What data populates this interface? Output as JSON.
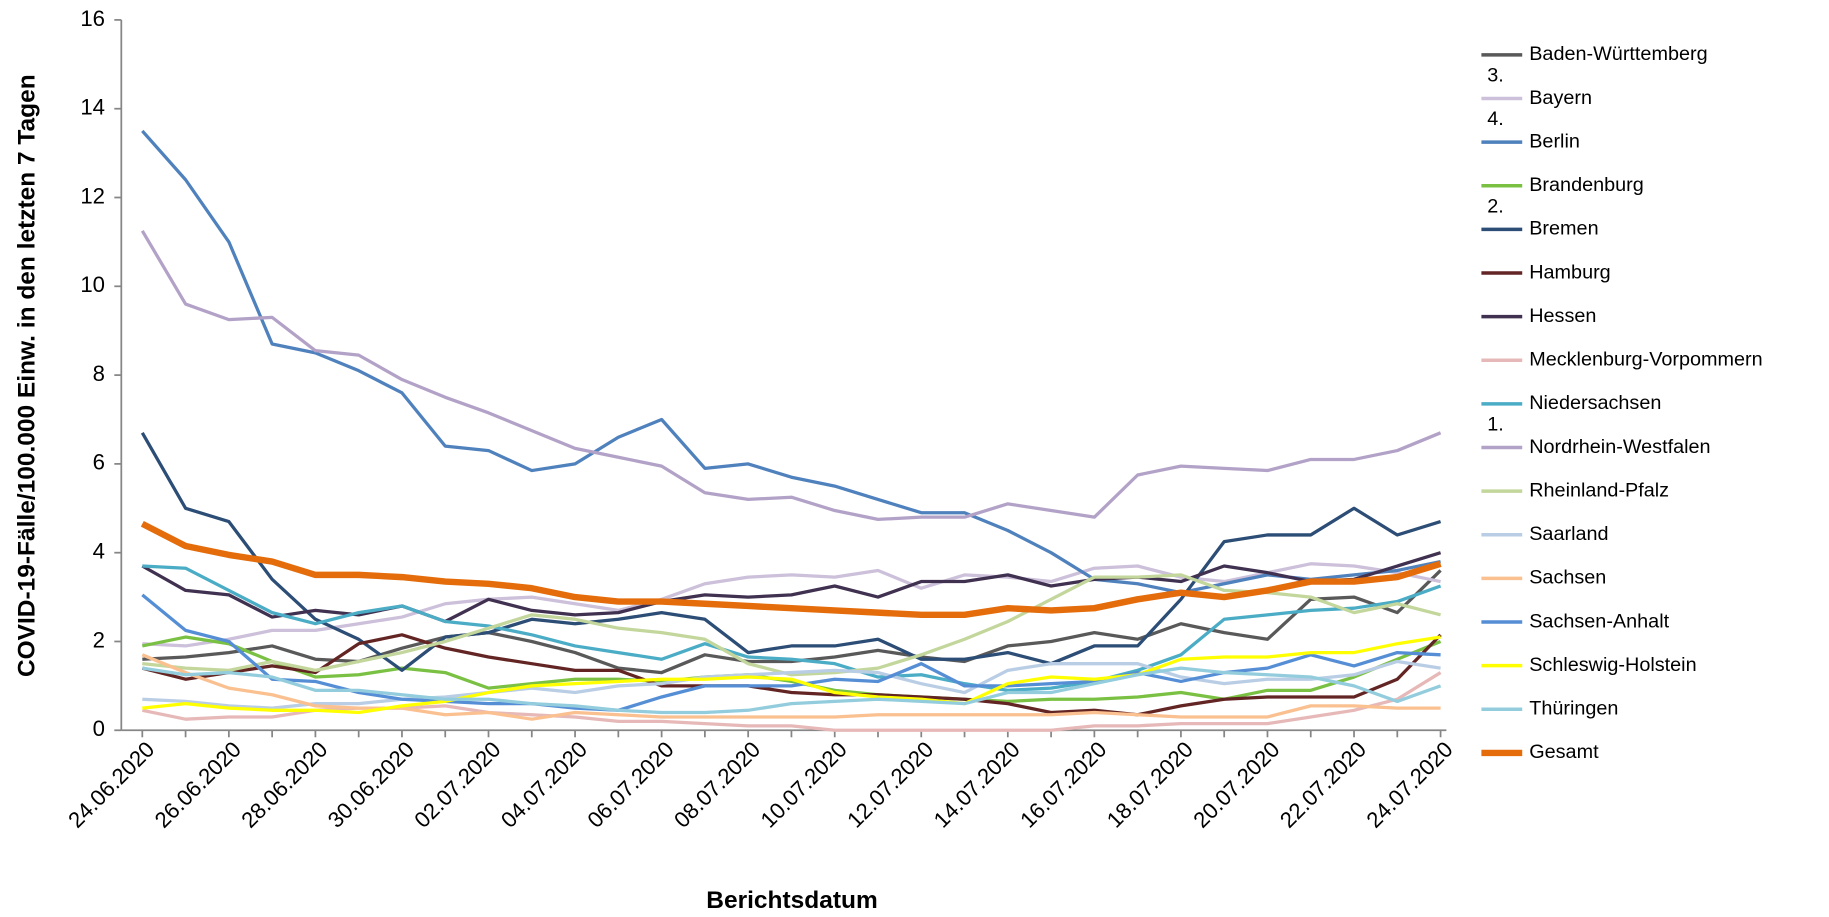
{
  "chart_data": {
    "type": "line",
    "y_label": "COVID-19-Fälle/100.000 Einw. in den letzten 7 Tagen",
    "x_label": "Berichtsdatum",
    "categories": [
      "24.06.2020",
      null,
      "26.06.2020",
      null,
      "28.06.2020",
      null,
      "30.06.2020",
      null,
      "02.07.2020",
      null,
      "04.07.2020",
      null,
      "06.07.2020",
      null,
      "08.07.2020",
      null,
      "10.07.2020",
      null,
      "12.07.2020",
      null,
      "14.07.2020",
      null,
      "16.07.2020",
      null,
      "18.07.2020",
      null,
      "20.07.2020",
      null,
      "22.07.2020",
      null,
      "24.07.2020"
    ],
    "ylim": [
      0,
      16
    ],
    "yticks": [
      0,
      2,
      4,
      6,
      8,
      10,
      12,
      14,
      16
    ],
    "grid": false,
    "legend": "right",
    "series": [
      {
        "name": "Baden-Württemberg",
        "color": "#595959",
        "values": [
          1.6,
          1.65,
          1.75,
          1.9,
          1.6,
          1.55,
          1.85,
          2.1,
          2.2,
          2.0,
          1.75,
          1.4,
          1.3,
          1.7,
          1.55,
          1.55,
          1.65,
          1.8,
          1.65,
          1.55,
          1.9,
          2.0,
          2.2,
          2.05,
          2.4,
          2.2,
          2.05,
          2.95,
          3.0,
          2.65,
          3.6
        ]
      },
      {
        "name": "Bayern",
        "annotation": "3.",
        "color": "#ccc0da",
        "values": [
          1.95,
          1.9,
          2.05,
          2.25,
          2.25,
          2.4,
          2.55,
          2.85,
          2.95,
          3.0,
          2.85,
          2.7,
          2.95,
          3.3,
          3.45,
          3.5,
          3.45,
          3.6,
          3.2,
          3.5,
          3.45,
          3.35,
          3.65,
          3.7,
          3.45,
          3.35,
          3.55,
          3.75,
          3.7,
          3.55,
          3.35
        ]
      },
      {
        "name": "Berlin",
        "annotation": "4.",
        "color": "#4f81bd",
        "values": [
          13.5,
          12.4,
          11.0,
          8.7,
          8.5,
          8.1,
          7.6,
          6.4,
          6.3,
          5.85,
          6.0,
          6.6,
          7.0,
          5.9,
          6.0,
          5.7,
          5.5,
          5.2,
          4.9,
          4.9,
          4.5,
          4.0,
          3.4,
          3.3,
          3.1,
          3.3,
          3.5,
          3.4,
          3.5,
          3.6,
          3.8
        ]
      },
      {
        "name": "Brandenburg",
        "color": "#7ac143",
        "values": [
          1.9,
          2.1,
          1.95,
          1.55,
          1.2,
          1.25,
          1.4,
          1.3,
          0.95,
          1.05,
          1.15,
          1.15,
          1.1,
          1.2,
          1.25,
          1.1,
          0.9,
          0.8,
          0.75,
          0.7,
          0.65,
          0.7,
          0.7,
          0.75,
          0.85,
          0.7,
          0.9,
          0.9,
          1.2,
          1.6,
          2.0
        ]
      },
      {
        "name": "Bremen",
        "annotation": "2.",
        "color": "#2c4d75",
        "values": [
          6.7,
          5.0,
          4.7,
          3.4,
          2.5,
          2.05,
          1.35,
          2.1,
          2.2,
          2.5,
          2.4,
          2.5,
          2.65,
          2.5,
          1.75,
          1.9,
          1.9,
          2.05,
          1.6,
          1.6,
          1.75,
          1.5,
          1.9,
          1.9,
          2.95,
          4.25,
          4.4,
          4.4,
          5.0,
          4.4,
          4.7
        ]
      },
      {
        "name": "Hamburg",
        "color": "#632523",
        "values": [
          1.4,
          1.15,
          1.3,
          1.45,
          1.3,
          1.95,
          2.15,
          1.85,
          1.65,
          1.5,
          1.35,
          1.35,
          1.0,
          1.0,
          1.0,
          0.85,
          0.8,
          0.8,
          0.75,
          0.7,
          0.6,
          0.4,
          0.45,
          0.35,
          0.55,
          0.7,
          0.75,
          0.75,
          0.75,
          1.15,
          2.15
        ]
      },
      {
        "name": "Hessen",
        "color": "#403151",
        "values": [
          3.7,
          3.15,
          3.05,
          2.55,
          2.7,
          2.6,
          2.8,
          2.45,
          2.95,
          2.7,
          2.6,
          2.65,
          2.9,
          3.05,
          3.0,
          3.05,
          3.25,
          3.0,
          3.35,
          3.35,
          3.5,
          3.25,
          3.4,
          3.45,
          3.35,
          3.7,
          3.55,
          3.35,
          3.4,
          3.7,
          4.0
        ]
      },
      {
        "name": "Mecklenburg-Vorpommern",
        "color": "#e6b9b8",
        "values": [
          0.45,
          0.25,
          0.3,
          0.3,
          0.45,
          0.5,
          0.5,
          0.55,
          0.4,
          0.35,
          0.3,
          0.2,
          0.2,
          0.15,
          0.1,
          0.1,
          0.0,
          0.0,
          0.0,
          0.0,
          0.0,
          0.0,
          0.1,
          0.1,
          0.15,
          0.15,
          0.15,
          0.3,
          0.45,
          0.7,
          1.3
        ]
      },
      {
        "name": "Niedersachsen",
        "color": "#4bacc6",
        "values": [
          3.7,
          3.65,
          3.15,
          2.65,
          2.4,
          2.65,
          2.8,
          2.45,
          2.35,
          2.15,
          1.9,
          1.75,
          1.6,
          1.95,
          1.65,
          1.6,
          1.5,
          1.2,
          1.25,
          1.05,
          0.9,
          0.95,
          1.1,
          1.35,
          1.7,
          2.5,
          2.6,
          2.7,
          2.75,
          2.9,
          3.25
        ]
      },
      {
        "name": "Nordrhein-Westfalen",
        "annotation": "1.",
        "color": "#b3a2c7",
        "values": [
          11.25,
          9.6,
          9.25,
          9.3,
          8.55,
          8.45,
          7.9,
          7.5,
          7.15,
          6.75,
          6.35,
          6.15,
          5.95,
          5.35,
          5.2,
          5.25,
          4.95,
          4.75,
          4.8,
          4.8,
          5.1,
          4.95,
          4.8,
          5.75,
          5.95,
          5.9,
          5.85,
          6.1,
          6.1,
          6.3,
          6.7
        ]
      },
      {
        "name": "Rheinland-Pfalz",
        "color": "#c3d69b",
        "values": [
          1.5,
          1.4,
          1.35,
          1.55,
          1.35,
          1.55,
          1.75,
          2.0,
          2.3,
          2.6,
          2.5,
          2.3,
          2.2,
          2.05,
          1.5,
          1.25,
          1.3,
          1.4,
          1.7,
          2.05,
          2.45,
          2.95,
          3.45,
          3.45,
          3.5,
          3.15,
          3.1,
          3.0,
          2.65,
          2.85,
          2.6
        ]
      },
      {
        "name": "Saarland",
        "color": "#b9cde5",
        "values": [
          0.7,
          0.65,
          0.55,
          0.5,
          0.6,
          0.6,
          0.7,
          0.75,
          0.85,
          0.95,
          0.85,
          1.0,
          1.05,
          1.2,
          1.25,
          1.3,
          1.35,
          1.3,
          1.05,
          0.85,
          1.35,
          1.5,
          1.5,
          1.5,
          1.2,
          1.05,
          1.15,
          1.15,
          1.25,
          1.55,
          1.4
        ]
      },
      {
        "name": "Sachsen",
        "color": "#fac090",
        "values": [
          1.7,
          1.3,
          0.95,
          0.8,
          0.55,
          0.5,
          0.5,
          0.35,
          0.4,
          0.25,
          0.4,
          0.35,
          0.3,
          0.3,
          0.3,
          0.3,
          0.3,
          0.35,
          0.35,
          0.35,
          0.35,
          0.35,
          0.4,
          0.35,
          0.3,
          0.3,
          0.3,
          0.55,
          0.55,
          0.5,
          0.5
        ]
      },
      {
        "name": "Sachsen-Anhalt",
        "color": "#558ed5",
        "values": [
          3.05,
          2.25,
          2.0,
          1.15,
          1.1,
          0.85,
          0.7,
          0.65,
          0.6,
          0.6,
          0.5,
          0.45,
          0.75,
          1.0,
          1.0,
          1.0,
          1.15,
          1.1,
          1.5,
          1.0,
          1.0,
          1.05,
          1.1,
          1.3,
          1.1,
          1.3,
          1.4,
          1.7,
          1.45,
          1.75,
          1.7
        ]
      },
      {
        "name": "Schleswig-Holstein",
        "color": "#ffff00",
        "values": [
          0.5,
          0.6,
          0.5,
          0.45,
          0.45,
          0.4,
          0.55,
          0.65,
          0.85,
          1.0,
          1.05,
          1.1,
          1.15,
          1.15,
          1.2,
          1.15,
          0.85,
          0.75,
          0.7,
          0.6,
          1.05,
          1.2,
          1.15,
          1.25,
          1.6,
          1.65,
          1.65,
          1.75,
          1.75,
          1.95,
          2.1
        ]
      },
      {
        "name": "Thüringen",
        "color": "#93cddd",
        "values": [
          1.4,
          1.25,
          1.3,
          1.2,
          0.9,
          0.9,
          0.8,
          0.7,
          0.7,
          0.6,
          0.55,
          0.45,
          0.4,
          0.4,
          0.45,
          0.6,
          0.65,
          0.7,
          0.65,
          0.6,
          0.85,
          0.85,
          1.05,
          1.25,
          1.4,
          1.3,
          1.25,
          1.2,
          1.0,
          0.65,
          1.0
        ]
      },
      {
        "name": "Gesamt",
        "color": "#e46c0a",
        "bold": true,
        "values": [
          4.65,
          4.15,
          3.95,
          3.8,
          3.5,
          3.5,
          3.45,
          3.35,
          3.3,
          3.2,
          3.0,
          2.9,
          2.9,
          2.85,
          2.8,
          2.75,
          2.7,
          2.65,
          2.6,
          2.6,
          2.75,
          2.7,
          2.75,
          2.95,
          3.1,
          3.0,
          3.15,
          3.35,
          3.35,
          3.45,
          3.75
        ]
      }
    ]
  }
}
